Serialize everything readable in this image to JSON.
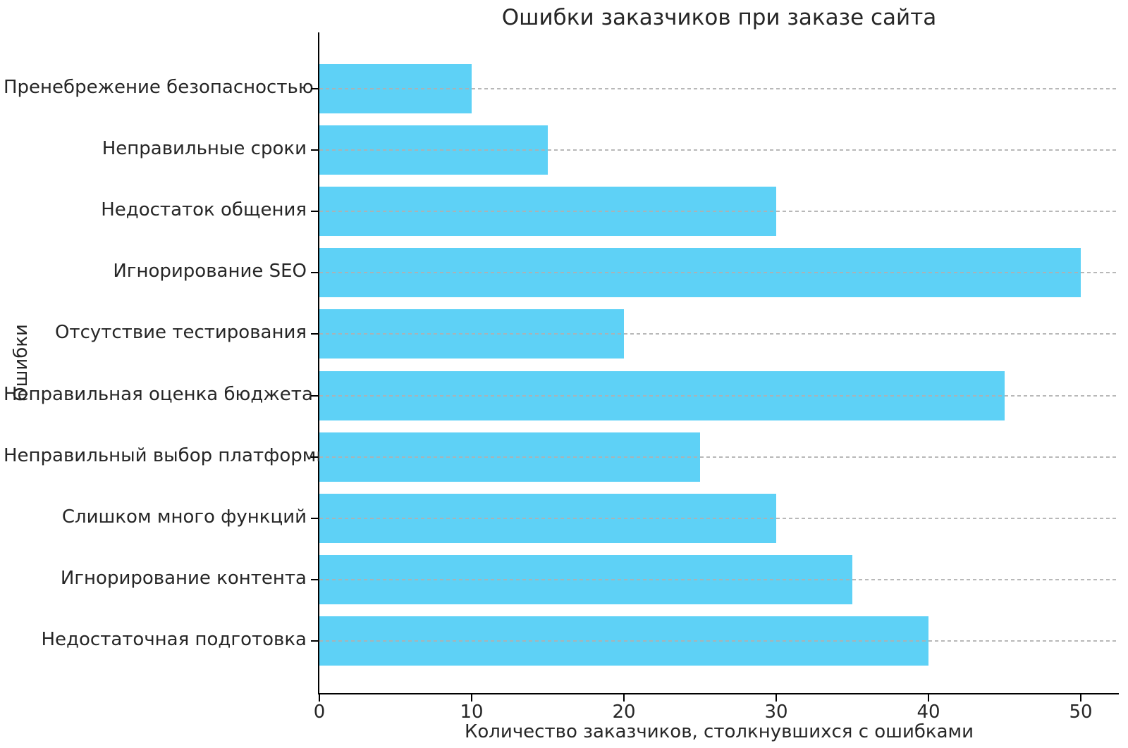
{
  "chart_data": {
    "type": "bar",
    "orientation": "horizontal",
    "title": "Ошибки заказчиков при заказе сайта",
    "xlabel": "Количество заказчиков, столкнувшихся с ошибками",
    "ylabel": "Ошибки",
    "categories": [
      "Пренебрежение безопасностью",
      "Неправильные сроки",
      "Недостаток общения",
      "Игнорирование SEO",
      "Отсутствие тестирования",
      "Неправильная оценка бюджета",
      "Неправильный выбор платформы",
      "Слишком много функций",
      "Игнорирование контента",
      "Недостаточная подготовка"
    ],
    "values": [
      10,
      15,
      30,
      50,
      20,
      45,
      25,
      30,
      35,
      40
    ],
    "xticks": [
      "0",
      "10",
      "20",
      "30",
      "40",
      "50"
    ],
    "xtick_values": [
      0,
      10,
      20,
      30,
      40,
      50
    ],
    "xlim": [
      0,
      52.5
    ],
    "grid": "horizontal-dashed",
    "legend": "none",
    "bar_color": "#5ed1f6",
    "grid_color": "rgba(176,176,176,0.9)",
    "axis_color": "#000000",
    "text_color": "#262626",
    "background_color": "#ffffff"
  }
}
